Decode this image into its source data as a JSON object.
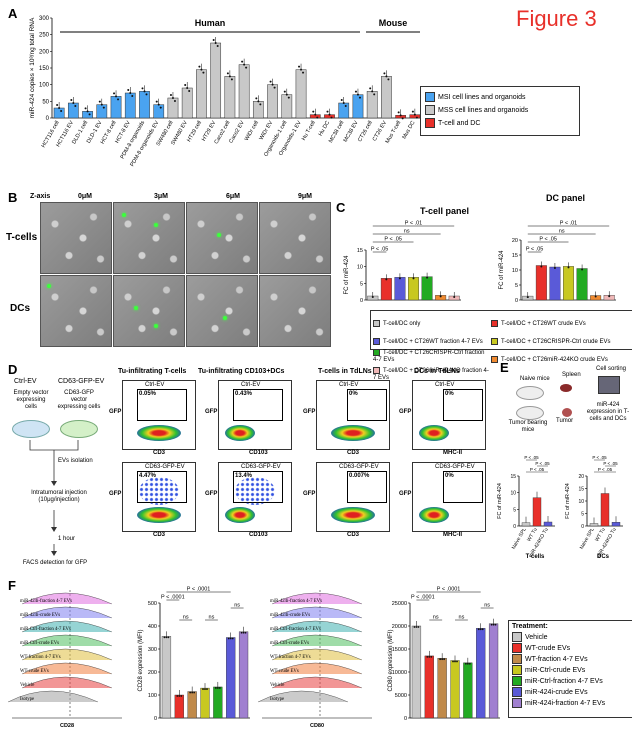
{
  "figure_label": "Figure 3",
  "panels": {
    "A": "A",
    "B": "B",
    "C": "C",
    "D": "D",
    "E": "E",
    "F": "F"
  },
  "colors": {
    "msi": "#4aa3f0",
    "mss": "#c8c8c8",
    "tdc": "#e8302a",
    "red_title": "#e8302a"
  },
  "panel_a": {
    "ylabel": "miR-424 copies × 10³/ng total RNA",
    "group_human": "Human",
    "group_mouse": "Mouse",
    "legend": [
      "MSI cell lines and organoids",
      "MSS cell lines and organoids",
      "T-cell and DC"
    ]
  },
  "panel_b": {
    "zaxis": "Z-axis",
    "z_levels": [
      "0μM",
      "3μM",
      "6μM",
      "9μM"
    ],
    "rows": [
      "T-cells",
      "DCs"
    ]
  },
  "panel_c": {
    "tcell_title": "T-cell panel",
    "dc_title": "DC panel",
    "ylabel": "FC of miR-424",
    "pvals": {
      "p01": "P < .01",
      "p05": "P < .05",
      "ns": "ns"
    },
    "legend": [
      "T-cell/DC only",
      "T-cell/DC + CT26WT crude EVs",
      "T-cell/DC + CT26WT fraction 4-7 EVs",
      "T-cell/DC + CT26CRISPR-Ctrl crude EVs",
      "T-cell/DC + CT26CRISPR-Ctrl fraction 4-7 EVs",
      "T-cell/DC + CT26miR-424KO crude EVs",
      "T-cell/DC + CT26miR-424KO fraction 4-7 EVs"
    ],
    "legend_colors": [
      "#c8c8c8",
      "#e8302a",
      "#5a5ad8",
      "#c8c820",
      "#22aa22",
      "#f08a30",
      "#f0b8b8"
    ]
  },
  "panel_d": {
    "left_labels": [
      "Ctrl-EV",
      "CD63-GFP-EV"
    ],
    "left_desc": [
      "Empty vector expressing cells",
      "CD63-GFP vector expressing cells"
    ],
    "steps": [
      "EVs isolation",
      "Intratumoral injection (10μg/injection)",
      "1 hour",
      "FACS detection for GFP"
    ],
    "col_titles": [
      "Tu-infiltrating T-cells",
      "Tu-infiltrating CD103+DCs",
      "T-cells in TdLNs",
      "DCs in TdLNs"
    ],
    "row_titles": [
      "Ctrl-EV",
      "CD63-GFP-EV"
    ],
    "pcts": [
      [
        "0.05%",
        "0.43%",
        "0%",
        "0%"
      ],
      [
        "4.47%",
        "13.4%",
        "0.007%",
        "0%"
      ]
    ],
    "xaxes": [
      "CD3",
      "CD103",
      "CD3",
      "MHC-II"
    ],
    "yaxis": "GFP"
  },
  "panel_e": {
    "schema": [
      "Naive mice",
      "Spleen",
      "Cell sorting",
      "Tumor bearing mice",
      "Tumor",
      "miR-424 expression in T-cells and DCs"
    ],
    "ylabel": "FC of miR-424",
    "groups": [
      "T-cells",
      "DCs"
    ],
    "xcats": [
      "Naive SPL",
      "WT Tu",
      "miR-424KO Tu"
    ],
    "p05": "P < .05"
  },
  "panel_f": {
    "left_hist_labels": [
      "miR-424i-fraction 4-7 EVs",
      "miR-424i-crude EVs",
      "miR-Ctrl-fraction 4-7 EVs",
      "miR-Ctrl-crude EVs",
      "WT-fraction 4-7 EVs",
      "WT-crude EVs",
      "Vehicle",
      "Isotype"
    ],
    "left_xlabel": "CD28",
    "right_xlabel": "CD80",
    "cd28_ylabel": "CD28 expression (MFI)",
    "cd80_ylabel": "CD80 expression (MFI)",
    "p0001": "P < .0001",
    "ns": "ns",
    "treatment_title": "Treatment:",
    "treatments": [
      "Vehicle",
      "WT-crude EVs",
      "WT-fraction 4-7 EVs",
      "miR-Ctrl-crude EVs",
      "miR-Ctrl-fraction 4-7 EVs",
      "miR-424i-crude EVs",
      "miR-424i-fraction 4-7 EVs"
    ],
    "treatment_colors": [
      "#c8c8c8",
      "#e8302a",
      "#c08a4a",
      "#c8c820",
      "#22aa22",
      "#5a5ad8",
      "#a080d0"
    ]
  },
  "chart_data": [
    {
      "type": "bar",
      "title": "",
      "ylabel": "miR-424 copies × 10³/ng total RNA",
      "ylim": [
        0,
        300
      ],
      "yticks": [
        0,
        50,
        100,
        150,
        200,
        250,
        300
      ],
      "categories": [
        "HCT116 cell",
        "HCT116 EV",
        "DLD-1 cell",
        "DLD-1 EV",
        "HCT-8 cell",
        "HCT-8 EV",
        "PDM-8 organoids",
        "PDM-8 organoids EV",
        "SW480 cell",
        "SW480 EV",
        "HT29 cell",
        "HT29 EV",
        "Caco2 cell",
        "Caco2 EV",
        "WiDr cell",
        "WiDr EV",
        "Organoids-1 cell",
        "Organoids-1 EV",
        "Hu T-cell",
        "Hu DC",
        "MC38 cell",
        "MC38 EV",
        "CT26 cell",
        "CT26 EV",
        "Mus T-cell",
        "Mus DC"
      ],
      "values": [
        30,
        45,
        20,
        40,
        65,
        75,
        80,
        40,
        60,
        90,
        145,
        225,
        125,
        160,
        50,
        100,
        70,
        145,
        10,
        10,
        45,
        70,
        80,
        125,
        8,
        10
      ],
      "groups": [
        "msi",
        "msi",
        "msi",
        "msi",
        "msi",
        "msi",
        "msi",
        "msi",
        "mss",
        "mss",
        "mss",
        "mss",
        "mss",
        "mss",
        "mss",
        "mss",
        "mss",
        "mss",
        "tdc",
        "tdc",
        "msi",
        "msi",
        "mss",
        "mss",
        "tdc",
        "tdc"
      ]
    },
    {
      "type": "bar",
      "title": "T-cell panel",
      "ylabel": "FC of miR-424",
      "ylim": [
        0,
        15
      ],
      "yticks": [
        0,
        5,
        10,
        15
      ],
      "categories": [
        "T-cell/DC only",
        "CT26WT crude EVs",
        "CT26WT fraction 4-7 EVs",
        "CT26CRISPR-Ctrl crude EVs",
        "CT26CRISPR-Ctrl fraction 4-7 EVs",
        "CT26miR-424KO crude EVs",
        "CT26miR-424KO fraction 4-7 EVs"
      ],
      "values": [
        1.2,
        6.5,
        6.8,
        6.8,
        7.0,
        1.4,
        1.2
      ]
    },
    {
      "type": "bar",
      "title": "DC panel",
      "ylabel": "FC of miR-424",
      "ylim": [
        0,
        20
      ],
      "yticks": [
        0,
        5,
        10,
        15,
        20
      ],
      "categories": [
        "T-cell/DC only",
        "CT26WT crude EVs",
        "CT26WT fraction 4-7 EVs",
        "CT26CRISPR-Ctrl crude EVs",
        "CT26CRISPR-Ctrl fraction 4-7 EVs",
        "CT26miR-424KO crude EVs",
        "CT26miR-424KO fraction 4-7 EVs"
      ],
      "values": [
        1.3,
        11.5,
        11.0,
        11.2,
        10.5,
        1.5,
        1.6
      ]
    },
    {
      "type": "bar",
      "title": "",
      "ylabel": "FC of miR-424",
      "ylim": [
        0,
        15
      ],
      "yticks": [
        0,
        5,
        10,
        15
      ],
      "categories": [
        "Naive SPL",
        "WT Tu",
        "miR-424KO Tu"
      ],
      "values": [
        1,
        8.5,
        1.2
      ]
    },
    {
      "type": "bar",
      "title": "",
      "ylabel": "FC of miR-424",
      "ylim": [
        0,
        20
      ],
      "yticks": [
        0,
        5,
        10,
        15,
        20
      ],
      "categories": [
        "Naive SPL",
        "WT Tu",
        "miR-424KO Tu"
      ],
      "values": [
        1,
        13,
        1.5
      ]
    },
    {
      "type": "bar",
      "title": "",
      "ylabel": "CD28 expression (MFI)",
      "ylim": [
        0,
        500
      ],
      "yticks": [
        0,
        100,
        200,
        300,
        400,
        500
      ],
      "categories": [
        "Vehicle",
        "WT-crude EVs",
        "WT-fraction 4-7 EVs",
        "miR-Ctrl-crude EVs",
        "miR-Ctrl-fraction 4-7 EVs",
        "miR-424i-crude EVs",
        "miR-424i-fraction 4-7 EVs"
      ],
      "values": [
        355,
        100,
        115,
        130,
        135,
        350,
        375
      ]
    },
    {
      "type": "bar",
      "title": "",
      "ylabel": "CD80 expression (MFI)",
      "ylim": [
        0,
        25000
      ],
      "yticks": [
        0,
        5000,
        10000,
        15000,
        20000,
        25000
      ],
      "categories": [
        "Vehicle",
        "WT-crude EVs",
        "WT-fraction 4-7 EVs",
        "miR-Ctrl-crude EVs",
        "miR-Ctrl-fraction 4-7 EVs",
        "miR-424i-crude EVs",
        "miR-424i-fraction 4-7 EVs"
      ],
      "values": [
        20000,
        13500,
        13000,
        12500,
        12000,
        19500,
        20500
      ]
    }
  ]
}
